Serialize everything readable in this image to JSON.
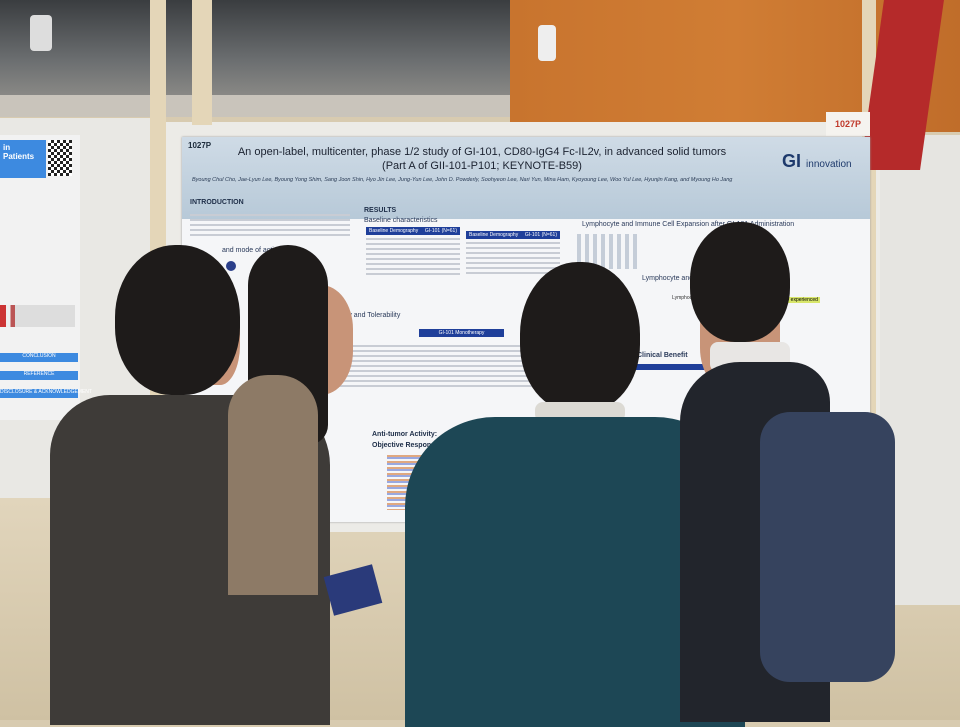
{
  "poster": {
    "id": "1027P",
    "title_line1": "An open-label, multicenter, phase 1/2 study of GI-101, CD80-IgG4 Fc-IL2v, in advanced solid tumors",
    "title_line2": "(Part A of GII-101-P101; KEYNOTE-B59)",
    "authors": "Byoung Chul Cho, Jae-Lyun Lee, Byoung Yong Shim, Sang Joon Shin, Hyo Jin Lee, Jung-Yun Lee, John D. Powderly, Soohyeon Lee, Nari Yun, Mina Ham, Kyoyoung Lee, Woo Yul Lee, Hyunjin Kang, and Myoung Ho Jang",
    "logo": "GI",
    "logo_text": "innovation",
    "sections": {
      "introduction": "INTRODUCTION",
      "mode_of_action": "and mode of action",
      "results": "RESULTS",
      "baseline": "Baseline characteristics",
      "table1_header": "Baseline Demography",
      "table1_col": "GI-101 (N=61)",
      "table2_header": "Baseline Demography",
      "table2_col": "GI-101 (N=61)",
      "safety": "Safety and Tolerability",
      "monotherapy": "GI-101 Monotherapy",
      "lymphocyte": "Lymphocyte and Immune Cell Expansion after GI-101 Administration",
      "lymphocyte2": "Lymphocyte and Immune",
      "lymphocyte_expansion": "Lymphocyte expansion",
      "io_experienced": "IO experienced",
      "clinical_benefit": "Clinical Benefit",
      "antitumor": "Anti-tumor Activity:",
      "objective": "Objective Response and Treatment Duration in Dose Expansion"
    }
  },
  "left_poster": {
    "title": "in Patients",
    "conclusion": "CONCLUSION",
    "reference": "REFERENCE",
    "disclosure": "DISCLOSURE & ACKNOWLEDGEMENT"
  },
  "board_sign": "1027P"
}
